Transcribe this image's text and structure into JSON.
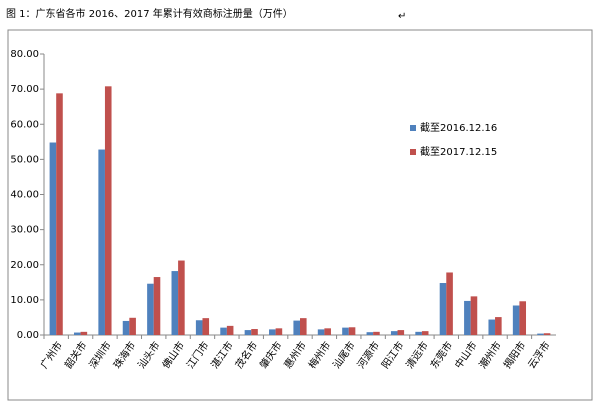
{
  "chart_data": {
    "type": "bar",
    "title": "图 1：广东省各市 2016、2017 年累计有效商标注册量（万件）",
    "title_mark": "↵",
    "categories": [
      "广州市",
      "韶关市",
      "深圳市",
      "珠海市",
      "汕头市",
      "佛山市",
      "江门市",
      "湛江市",
      "茂名市",
      "肇庆市",
      "惠州市",
      "梅州市",
      "汕尾市",
      "河源市",
      "阳江市",
      "清远市",
      "东莞市",
      "中山市",
      "潮州市",
      "揭阳市",
      "云浮市"
    ],
    "series": [
      {
        "name": "截至2016.12.16",
        "color": "#4f81bd",
        "values": [
          54.8,
          0.7,
          52.8,
          4.0,
          14.6,
          18.2,
          4.2,
          2.1,
          1.4,
          1.6,
          4.1,
          1.6,
          2.1,
          0.8,
          1.1,
          0.9,
          14.8,
          9.7,
          4.4,
          8.4,
          0.4
        ]
      },
      {
        "name": "截至2017.12.15",
        "color": "#c0504d",
        "values": [
          68.8,
          0.9,
          70.8,
          4.9,
          16.5,
          21.2,
          4.8,
          2.6,
          1.7,
          1.9,
          4.8,
          1.9,
          2.2,
          0.9,
          1.4,
          1.1,
          17.8,
          11.0,
          5.1,
          9.6,
          0.5
        ]
      }
    ],
    "ylim": [
      0,
      80
    ],
    "yticks": [
      {
        "value": 0,
        "label": "0.00"
      },
      {
        "value": 10,
        "label": "10.00"
      },
      {
        "value": 20,
        "label": "20.00"
      },
      {
        "value": 30,
        "label": "30.00"
      },
      {
        "value": 40,
        "label": "40.00"
      },
      {
        "value": 50,
        "label": "50.00"
      },
      {
        "value": 60,
        "label": "60.00"
      },
      {
        "value": 70,
        "label": "70.00"
      },
      {
        "value": 80,
        "label": "80.00"
      }
    ],
    "grid": false,
    "legend": "right"
  }
}
